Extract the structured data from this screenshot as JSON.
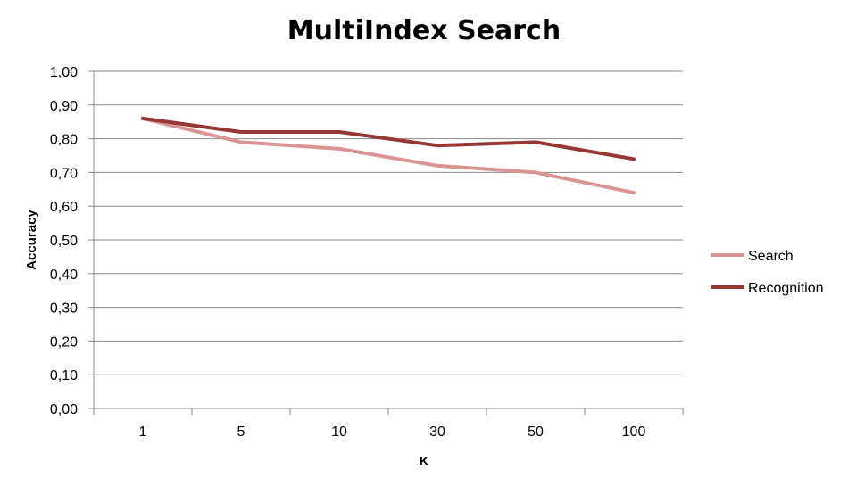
{
  "chart_data": {
    "type": "line",
    "title": "MultiIndex Search",
    "xlabel": "K",
    "ylabel": "Accuracy",
    "categories": [
      "1",
      "5",
      "10",
      "30",
      "50",
      "100"
    ],
    "ylim": [
      0,
      1
    ],
    "yticks": [
      "0,00",
      "0,10",
      "0,20",
      "0,30",
      "0,40",
      "0,50",
      "0,60",
      "0,70",
      "0,80",
      "0,90",
      "1,00"
    ],
    "grid": true,
    "legend_position": "right",
    "series": [
      {
        "name": "Search",
        "color": "#d99594",
        "values": [
          0.86,
          0.79,
          0.77,
          0.72,
          0.7,
          0.64
        ]
      },
      {
        "name": "Recognition",
        "color": "#953735",
        "values": [
          0.86,
          0.82,
          0.82,
          0.78,
          0.79,
          0.74
        ]
      }
    ]
  }
}
